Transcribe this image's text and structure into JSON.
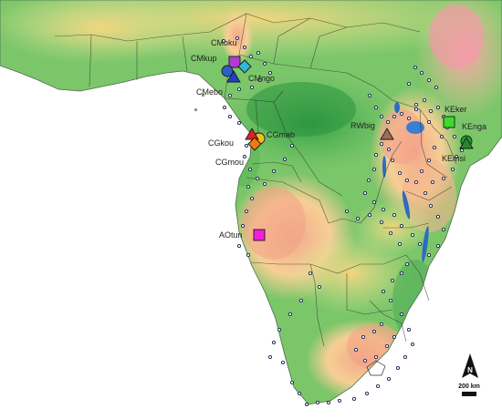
{
  "map": {
    "sites": [
      {
        "code": "CMoku",
        "marker": "square",
        "color": "#b23bd6"
      },
      {
        "code": "CMkup",
        "marker": "circle",
        "color": "#2f5fc4"
      },
      {
        "code": "CMngo",
        "marker": "diamond",
        "color": "#2dbad6"
      },
      {
        "code": "CMebo",
        "marker": "triangle",
        "color": "#1f3fd0"
      },
      {
        "code": "CGmab",
        "marker": "circle",
        "color": "#f2c01e"
      },
      {
        "code": "CGkou",
        "marker": "triangle",
        "color": "#e0231c"
      },
      {
        "code": "CGmou",
        "marker": "diamond",
        "color": "#f07a12"
      },
      {
        "code": "RWbig",
        "marker": "triangle",
        "color": "#9a6f55"
      },
      {
        "code": "KEker",
        "marker": "square",
        "color": "#3ddb2c"
      },
      {
        "code": "KEnga",
        "marker": "circle",
        "color": "#1da336"
      },
      {
        "code": "KEmsi",
        "marker": "triangle",
        "color": "#25882e"
      },
      {
        "code": "AOtun",
        "marker": "square",
        "color": "#f01fd9"
      }
    ],
    "north_label": "N",
    "scale_label": "200 km"
  }
}
